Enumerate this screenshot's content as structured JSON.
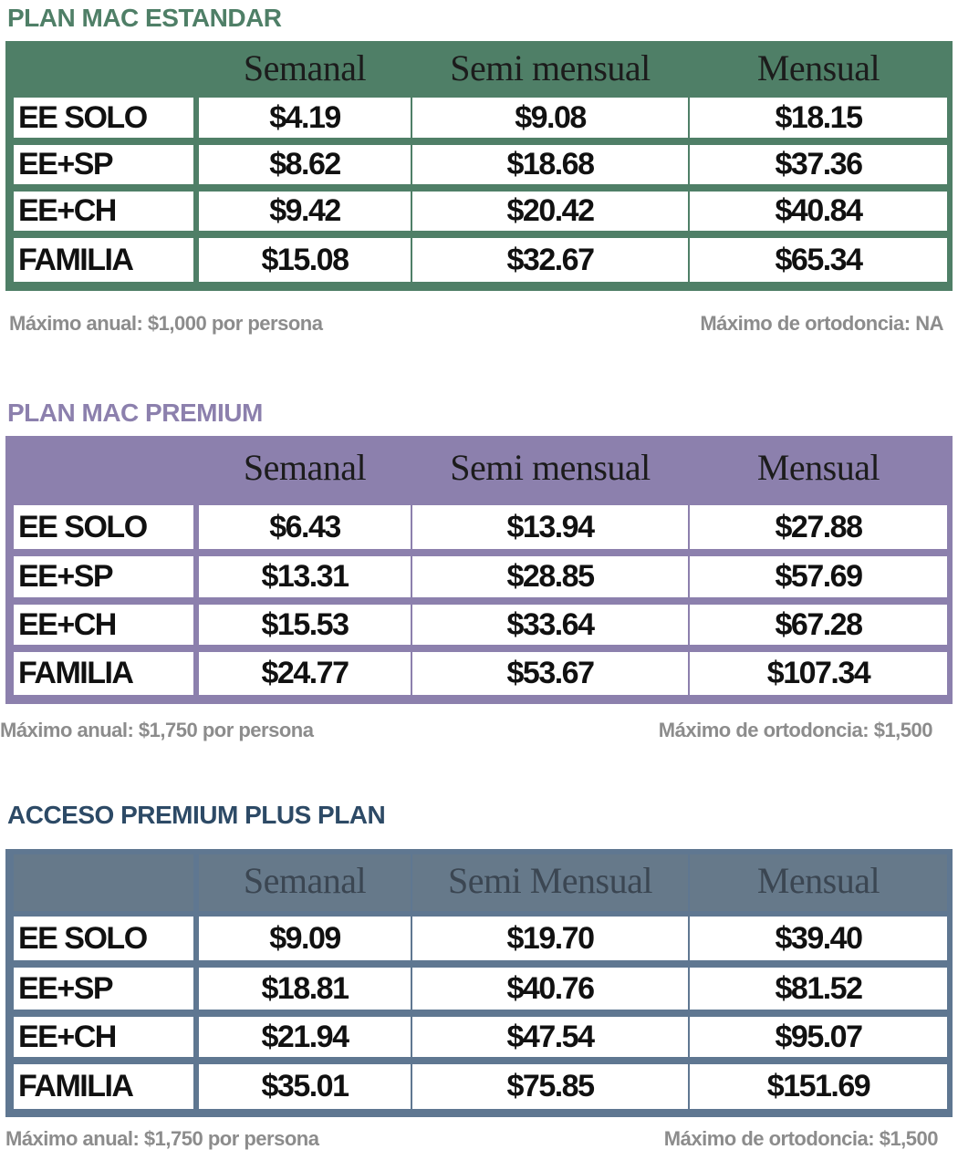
{
  "colors": {
    "estandar": "#4f7f67",
    "premium": "#8c80ad",
    "plus": "#5f7791",
    "plus_header_inner": "#66798a",
    "plus_title": "#2d4a66",
    "note_gray": "#8c8c8c"
  },
  "columns": [
    "Semanal",
    "Semi mensual",
    "Mensual"
  ],
  "plans": [
    {
      "title": "PLAN MAC ESTANDAR",
      "columns": [
        "Semanal",
        "Semi mensual",
        "Mensual"
      ],
      "rows": [
        {
          "label": "EE SOLO",
          "values": [
            "$4.19",
            "$9.08",
            "$18.15"
          ]
        },
        {
          "label": "EE+SP",
          "values": [
            "$8.62",
            "$18.68",
            "$37.36"
          ]
        },
        {
          "label": "EE+CH",
          "values": [
            "$9.42",
            "$20.42",
            "$40.84"
          ]
        },
        {
          "label": "FAMILIA",
          "values": [
            "$15.08",
            "$32.67",
            "$65.34"
          ]
        }
      ],
      "note_left": "Máximo anual: $1,000 por persona",
      "note_right": "Máximo de ortodoncia: NA"
    },
    {
      "title": "PLAN MAC PREMIUM",
      "columns": [
        "Semanal",
        "Semi mensual",
        "Mensual"
      ],
      "rows": [
        {
          "label": "EE SOLO",
          "values": [
            "$6.43",
            "$13.94",
            "$27.88"
          ]
        },
        {
          "label": "EE+SP",
          "values": [
            "$13.31",
            "$28.85",
            "$57.69"
          ]
        },
        {
          "label": "EE+CH",
          "values": [
            "$15.53",
            "$33.64",
            "$67.28"
          ]
        },
        {
          "label": "FAMILIA",
          "values": [
            "$24.77",
            "$53.67",
            "$107.34"
          ]
        }
      ],
      "note_left": "Máximo anual: $1,750 por persona",
      "note_right": "Máximo de ortodoncia: $1,500"
    },
    {
      "title": "ACCESO PREMIUM PLUS PLAN",
      "columns": [
        "Semanal",
        "Semi Mensual",
        "Mensual"
      ],
      "rows": [
        {
          "label": "EE SOLO",
          "values": [
            "$9.09",
            "$19.70",
            "$39.40"
          ]
        },
        {
          "label": "EE+SP",
          "values": [
            "$18.81",
            "$40.76",
            "$81.52"
          ]
        },
        {
          "label": "EE+CH",
          "values": [
            "$21.94",
            "$47.54",
            "$95.07"
          ]
        },
        {
          "label": "FAMILIA",
          "values": [
            "$35.01",
            "$75.85",
            "$151.69"
          ]
        }
      ],
      "note_left": "Máximo anual: $1,750 por persona",
      "note_right": "Máximo de ortodoncia: $1,500"
    }
  ]
}
